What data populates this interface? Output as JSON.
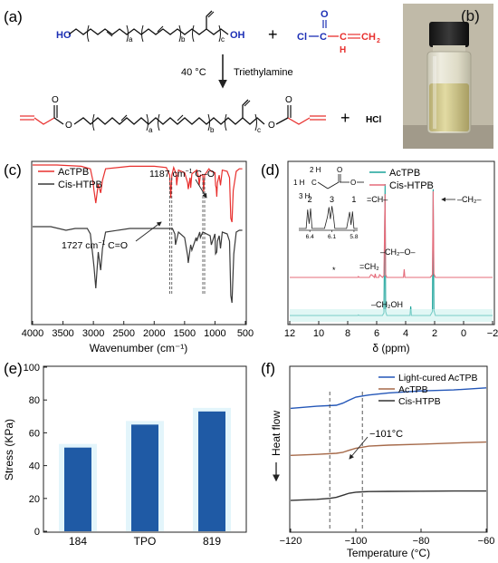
{
  "panels": {
    "a": {
      "label": "(a)",
      "reactant_oh_left": "HO",
      "reactant_oh_right": "OH",
      "sub_a": "a",
      "sub_b": "b",
      "sub_c": "c",
      "plus1": "+",
      "acyl_cl": "Cl",
      "acyl_o": "O",
      "acyl_c": "C",
      "acyl_h": "H",
      "acyl_ch2": "CH",
      "sub2": "2",
      "condition_temp": "40 °C",
      "condition_reagent": "Triethylamine",
      "product_o1": "O",
      "product_o2": "O",
      "product_o3": "O",
      "product_o4": "O",
      "plus2": "+",
      "hcl": "HCl"
    },
    "b": {
      "label": "(b)"
    },
    "c": {
      "label": "(c)",
      "annotation_1187": "1187 cm",
      "annotation_1187_suffix": " C–O",
      "annotation_1727": "1727 cm",
      "annotation_1727_suffix": " C=O",
      "superscript": "−1"
    },
    "d": {
      "label": "(d)",
      "inset_struct_2h": "2 H",
      "inset_struct_1h": "1 H",
      "inset_struct_3h": "3 H",
      "inset_struct_c": "C",
      "inset_struct_o": "O",
      "inset_peaks": [
        "2",
        "3",
        "1"
      ],
      "inset_ticks": [
        "6.4",
        "6.1",
        "5.8"
      ],
      "ann_ch": "=CH–",
      "ann_ch2_right": "–CH₂–",
      "ann_ch2o": "–CH₂–O–",
      "ann_ch2eq": "=CH₂",
      "ann_ch2oh": "–CH₂OH",
      "ann_star": "*"
    },
    "e": {
      "label": "(e)"
    },
    "f": {
      "label": "(f)",
      "annotation": "−101°C"
    }
  },
  "chart_data": [
    {
      "panel": "c",
      "type": "line",
      "title": "",
      "xlabel": "Wavenumber (cm⁻¹)",
      "ylabel": "",
      "xlim": [
        4000,
        500
      ],
      "xticks": [
        4000,
        3500,
        3000,
        2500,
        2000,
        1500,
        1000,
        500
      ],
      "legend_position": "top-left",
      "series": [
        {
          "name": "AcTPB",
          "color": "#e8302e",
          "x": [
            4000,
            3600,
            3200,
            3050,
            3010,
            2990,
            2960,
            2920,
            2880,
            2850,
            2800,
            2400,
            2000,
            1800,
            1745,
            1727,
            1710,
            1680,
            1640,
            1630,
            1600,
            1500,
            1450,
            1440,
            1410,
            1400,
            1380,
            1300,
            1270,
            1260,
            1240,
            1200,
            1187,
            1170,
            1100,
            1060,
            1000,
            990,
            980,
            970,
            960,
            930,
            910,
            880,
            800,
            760,
            740,
            720,
            700,
            650,
            600,
            550
          ],
          "y": [
            100,
            100,
            99,
            97,
            88,
            80,
            70,
            85,
            78,
            88,
            97,
            99,
            99,
            98,
            92,
            74,
            92,
            98,
            93,
            84,
            96,
            94,
            86,
            81,
            90,
            82,
            93,
            96,
            90,
            84,
            92,
            92,
            79,
            92,
            97,
            95,
            94,
            84,
            82,
            75,
            86,
            92,
            84,
            96,
            95,
            90,
            58,
            55,
            80,
            95,
            97,
            97
          ]
        },
        {
          "name": "Cis-HTPB",
          "color": "#3a3a3a",
          "x": [
            4000,
            3700,
            3450,
            3300,
            3100,
            3050,
            3010,
            2990,
            2960,
            2920,
            2880,
            2850,
            2800,
            2400,
            2000,
            1750,
            1700,
            1660,
            1650,
            1600,
            1500,
            1450,
            1440,
            1400,
            1380,
            1310,
            1300,
            1250,
            1240,
            1200,
            1080,
            1060,
            1000,
            990,
            970,
            960,
            930,
            910,
            880,
            800,
            760,
            740,
            720,
            690,
            650,
            600,
            550
          ],
          "y": [
            100,
            100,
            98,
            99,
            99,
            96,
            84,
            78,
            66,
            86,
            76,
            88,
            97,
            99,
            99,
            99,
            99,
            96,
            90,
            97,
            94,
            84,
            80,
            90,
            87,
            94,
            92,
            97,
            94,
            97,
            95,
            90,
            96,
            85,
            86,
            92,
            95,
            88,
            97,
            96,
            92,
            62,
            58,
            85,
            97,
            98,
            98
          ]
        }
      ],
      "annotations": [
        "1187 cm−1 C–O",
        "1727 cm−1 C=O"
      ]
    },
    {
      "panel": "d",
      "type": "line",
      "title": "",
      "xlabel": "δ (ppm)",
      "ylabel": "",
      "xlim": [
        12,
        -2
      ],
      "xticks": [
        12,
        10,
        8,
        6,
        4,
        2,
        0,
        -2
      ],
      "legend_position": "top-right",
      "series": [
        {
          "name": "AcTPB",
          "color": "#1aa39a",
          "x": [
            12,
            8,
            7.3,
            7.26,
            7.2,
            6.5,
            6.4,
            6.1,
            5.8,
            5.6,
            5.5,
            5.42,
            5.38,
            5.3,
            5.0,
            4.5,
            4.15,
            4.1,
            3.7,
            3.65,
            3.6,
            3.5,
            2.3,
            2.15,
            2.1,
            2.05,
            1.95,
            1.6,
            1.0,
            0,
            -2
          ],
          "y": [
            0,
            0,
            0,
            0.5,
            0,
            0,
            0,
            0,
            0,
            0,
            2,
            100,
            3,
            0,
            0,
            0,
            0,
            0,
            0,
            7,
            0,
            0,
            0,
            3,
            96,
            4,
            0,
            0,
            0,
            0,
            0
          ]
        },
        {
          "name": "Cis-HTPB",
          "color": "#e56b7a",
          "x": [
            12,
            8,
            7.3,
            7.26,
            7.2,
            6.5,
            6.4,
            6.35,
            6.15,
            6.1,
            6.05,
            5.85,
            5.8,
            5.6,
            5.5,
            5.42,
            5.38,
            5.3,
            5.0,
            4.6,
            4.15,
            4.1,
            4.05,
            3.0,
            2.3,
            2.15,
            2.1,
            2.05,
            1.95,
            1.6,
            1.0,
            0,
            -2
          ],
          "y": [
            0,
            0,
            0,
            1,
            0,
            0,
            3,
            3,
            0,
            4,
            0,
            0,
            3,
            0,
            2,
            92,
            3,
            0,
            0,
            0,
            0,
            9,
            0,
            0,
            0,
            3,
            95,
            4,
            0,
            0,
            0,
            0,
            0
          ]
        }
      ],
      "inset": {
        "x": [
          6.55,
          6.45,
          6.43,
          6.41,
          6.39,
          6.37,
          6.3,
          6.2,
          6.16,
          6.14,
          6.12,
          6.1,
          6.08,
          6.06,
          6.0,
          5.9,
          5.86,
          5.84,
          5.82,
          5.8,
          5.75
        ],
        "y": [
          0,
          0,
          80,
          20,
          85,
          0,
          0,
          0,
          50,
          90,
          40,
          95,
          55,
          0,
          0,
          0,
          70,
          15,
          72,
          0,
          0
        ]
      }
    },
    {
      "panel": "e",
      "type": "bar",
      "title": "",
      "xlabel": "",
      "ylabel": "Stress (KPa)",
      "ylim": [
        0,
        100
      ],
      "yticks": [
        0,
        20,
        40,
        60,
        80,
        100
      ],
      "categories": [
        "184",
        "TPO",
        "819"
      ],
      "values": [
        51,
        65,
        73
      ],
      "bar_color": "#1f5aa5",
      "shadow_color": "#e3f5fb"
    },
    {
      "panel": "f",
      "type": "line",
      "title": "",
      "xlabel": "Temperature (°C)",
      "ylabel": "Heat flow",
      "xlim": [
        -120,
        -60
      ],
      "xticks": [
        -120,
        -100,
        -80,
        -60
      ],
      "legend_position": "top-right",
      "series": [
        {
          "name": "Light-cured AcTPB",
          "color": "#2457b8",
          "x": [
            -120,
            -112,
            -106,
            -104,
            -102,
            -100,
            -98,
            -96,
            -90,
            -80,
            -70,
            -60
          ],
          "y": [
            0.63,
            0.64,
            0.645,
            0.655,
            0.67,
            0.685,
            0.69,
            0.695,
            0.705,
            0.715,
            0.72,
            0.73
          ]
        },
        {
          "name": "AcTPB",
          "color": "#a66a4a",
          "x": [
            -120,
            -112,
            -106,
            -104,
            -102,
            -100,
            -98,
            -96,
            -90,
            -80,
            -70,
            -60
          ],
          "y": [
            0.4,
            0.405,
            0.41,
            0.415,
            0.425,
            0.435,
            0.44,
            0.445,
            0.45,
            0.455,
            0.46,
            0.465
          ]
        },
        {
          "name": "Cis-HTPB",
          "color": "#333333",
          "x": [
            -120,
            -112,
            -108,
            -106,
            -104,
            -102,
            -100,
            -98,
            -96,
            -90,
            -80,
            -70,
            -60
          ],
          "y": [
            0.18,
            0.185,
            0.19,
            0.195,
            0.205,
            0.215,
            0.22,
            0.222,
            0.223,
            0.224,
            0.225,
            0.226,
            0.226
          ]
        }
      ],
      "dashed_lines_x": [
        -108,
        -98
      ],
      "annotation": "−101°C"
    }
  ]
}
